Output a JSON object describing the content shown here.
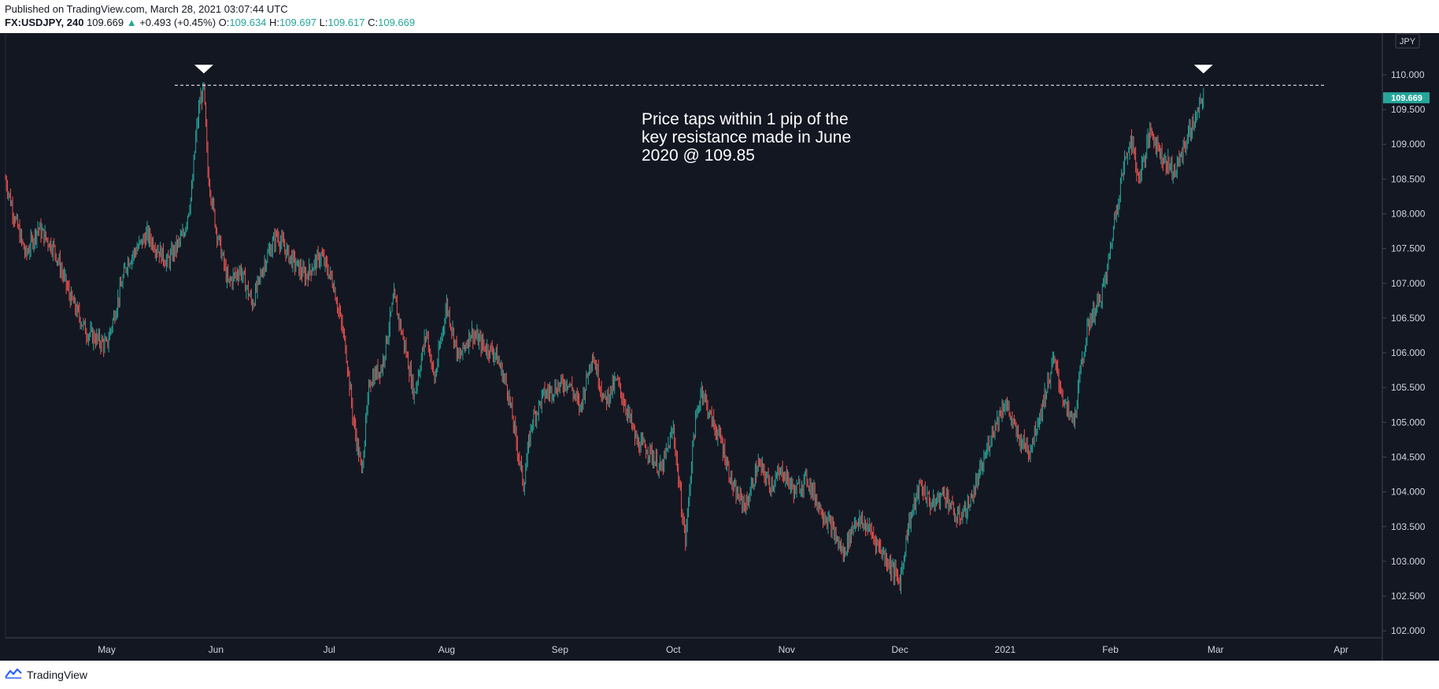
{
  "header": {
    "published": "Published on TradingView.com, March 28, 2021 03:07:44 UTC",
    "symbol": "FX:USDJPY, 240",
    "last": "109.669",
    "up_arrow": "▲",
    "change": "+0.493 (+0.45%)",
    "o_label": "O:",
    "o_value": "109.634",
    "h_label": "H:",
    "h_value": "109.697",
    "l_label": "L:",
    "l_value": "109.617",
    "c_label": "C:",
    "c_value": "109.669"
  },
  "footer": {
    "brand": "TradingView"
  },
  "currency_tag": "JPY",
  "last_price_tag": "109.669",
  "annotation": [
    "Price taps within 1 pip of the",
    "key resistance made in June",
    "2020 @ 109.85"
  ],
  "colors": {
    "background": "#131722",
    "up": "#26a69a",
    "down": "#ef5350",
    "text": "#d1d4dc"
  },
  "chart_data": {
    "type": "candlestick",
    "symbol": "FX:USDJPY",
    "timeframe": "240",
    "x_ticks": [
      "May",
      "Jun",
      "Jul",
      "Aug",
      "Sep",
      "Oct",
      "Nov",
      "Dec",
      "2021",
      "Feb",
      "Mar",
      "Apr"
    ],
    "y_ticks": [
      "102.000",
      "102.500",
      "103.000",
      "103.500",
      "104.000",
      "104.500",
      "105.000",
      "105.500",
      "106.000",
      "106.500",
      "107.000",
      "107.500",
      "108.000",
      "108.500",
      "109.000",
      "109.500",
      "110.000"
    ],
    "ylim": [
      101.9,
      110.6
    ],
    "resistance_level": 109.85,
    "markers": [
      "Jun peak",
      "Mar retest"
    ],
    "last_price": 109.669,
    "price_path": [
      [
        0,
        108.5
      ],
      [
        2,
        108.0
      ],
      [
        5,
        107.4
      ],
      [
        8,
        107.8
      ],
      [
        12,
        107.5
      ],
      [
        16,
        106.8
      ],
      [
        20,
        106.3
      ],
      [
        25,
        106.1
      ],
      [
        30,
        107.3
      ],
      [
        35,
        107.7
      ],
      [
        40,
        107.3
      ],
      [
        44,
        107.7
      ],
      [
        46,
        108.3
      ],
      [
        47,
        109.1
      ],
      [
        48,
        109.6
      ],
      [
        49,
        109.8
      ],
      [
        50,
        108.6
      ],
      [
        52,
        107.8
      ],
      [
        55,
        107.0
      ],
      [
        58,
        107.2
      ],
      [
        61,
        106.7
      ],
      [
        64,
        107.3
      ],
      [
        67,
        107.7
      ],
      [
        70,
        107.4
      ],
      [
        74,
        107.1
      ],
      [
        78,
        107.4
      ],
      [
        81,
        107.0
      ],
      [
        84,
        106.1
      ],
      [
        86,
        105.0
      ],
      [
        88,
        104.3
      ],
      [
        90,
        105.6
      ],
      [
        93,
        105.8
      ],
      [
        96,
        106.8
      ],
      [
        99,
        106.0
      ],
      [
        101,
        105.4
      ],
      [
        104,
        106.3
      ],
      [
        106,
        105.6
      ],
      [
        109,
        106.7
      ],
      [
        112,
        105.9
      ],
      [
        115,
        106.3
      ],
      [
        118,
        106.1
      ],
      [
        121,
        106.0
      ],
      [
        124,
        105.5
      ],
      [
        126,
        104.8
      ],
      [
        128,
        104.1
      ],
      [
        130,
        105.0
      ],
      [
        133,
        105.4
      ],
      [
        136,
        105.5
      ],
      [
        139,
        105.6
      ],
      [
        142,
        105.2
      ],
      [
        145,
        106.0
      ],
      [
        148,
        105.3
      ],
      [
        151,
        105.6
      ],
      [
        154,
        105.1
      ],
      [
        156,
        104.7
      ],
      [
        159,
        104.6
      ],
      [
        162,
        104.3
      ],
      [
        165,
        104.9
      ],
      [
        167,
        103.8
      ],
      [
        168,
        103.3
      ],
      [
        170,
        104.8
      ],
      [
        172,
        105.5
      ],
      [
        174,
        105.1
      ],
      [
        177,
        104.7
      ],
      [
        180,
        104.0
      ],
      [
        183,
        103.8
      ],
      [
        186,
        104.4
      ],
      [
        189,
        104.1
      ],
      [
        192,
        104.3
      ],
      [
        195,
        104.0
      ],
      [
        198,
        104.2
      ],
      [
        201,
        103.8
      ],
      [
        204,
        103.5
      ],
      [
        207,
        103.1
      ],
      [
        210,
        103.6
      ],
      [
        213,
        103.5
      ],
      [
        216,
        103.2
      ],
      [
        219,
        102.9
      ],
      [
        221,
        102.7
      ],
      [
        223,
        103.5
      ],
      [
        226,
        104.1
      ],
      [
        229,
        103.8
      ],
      [
        232,
        104.0
      ],
      [
        235,
        103.6
      ],
      [
        238,
        103.8
      ],
      [
        241,
        104.3
      ],
      [
        244,
        104.9
      ],
      [
        247,
        105.3
      ],
      [
        250,
        104.8
      ],
      [
        253,
        104.6
      ],
      [
        256,
        105.2
      ],
      [
        259,
        105.9
      ],
      [
        262,
        105.2
      ],
      [
        264,
        105.0
      ],
      [
        266,
        105.9
      ],
      [
        268,
        106.5
      ],
      [
        270,
        106.7
      ],
      [
        272,
        107.1
      ],
      [
        274,
        107.9
      ],
      [
        276,
        108.6
      ],
      [
        278,
        109.1
      ],
      [
        280,
        108.5
      ],
      [
        283,
        109.2
      ],
      [
        286,
        108.8
      ],
      [
        289,
        108.6
      ],
      [
        292,
        109.1
      ],
      [
        295,
        109.5
      ],
      [
        296,
        109.75
      ]
    ]
  }
}
